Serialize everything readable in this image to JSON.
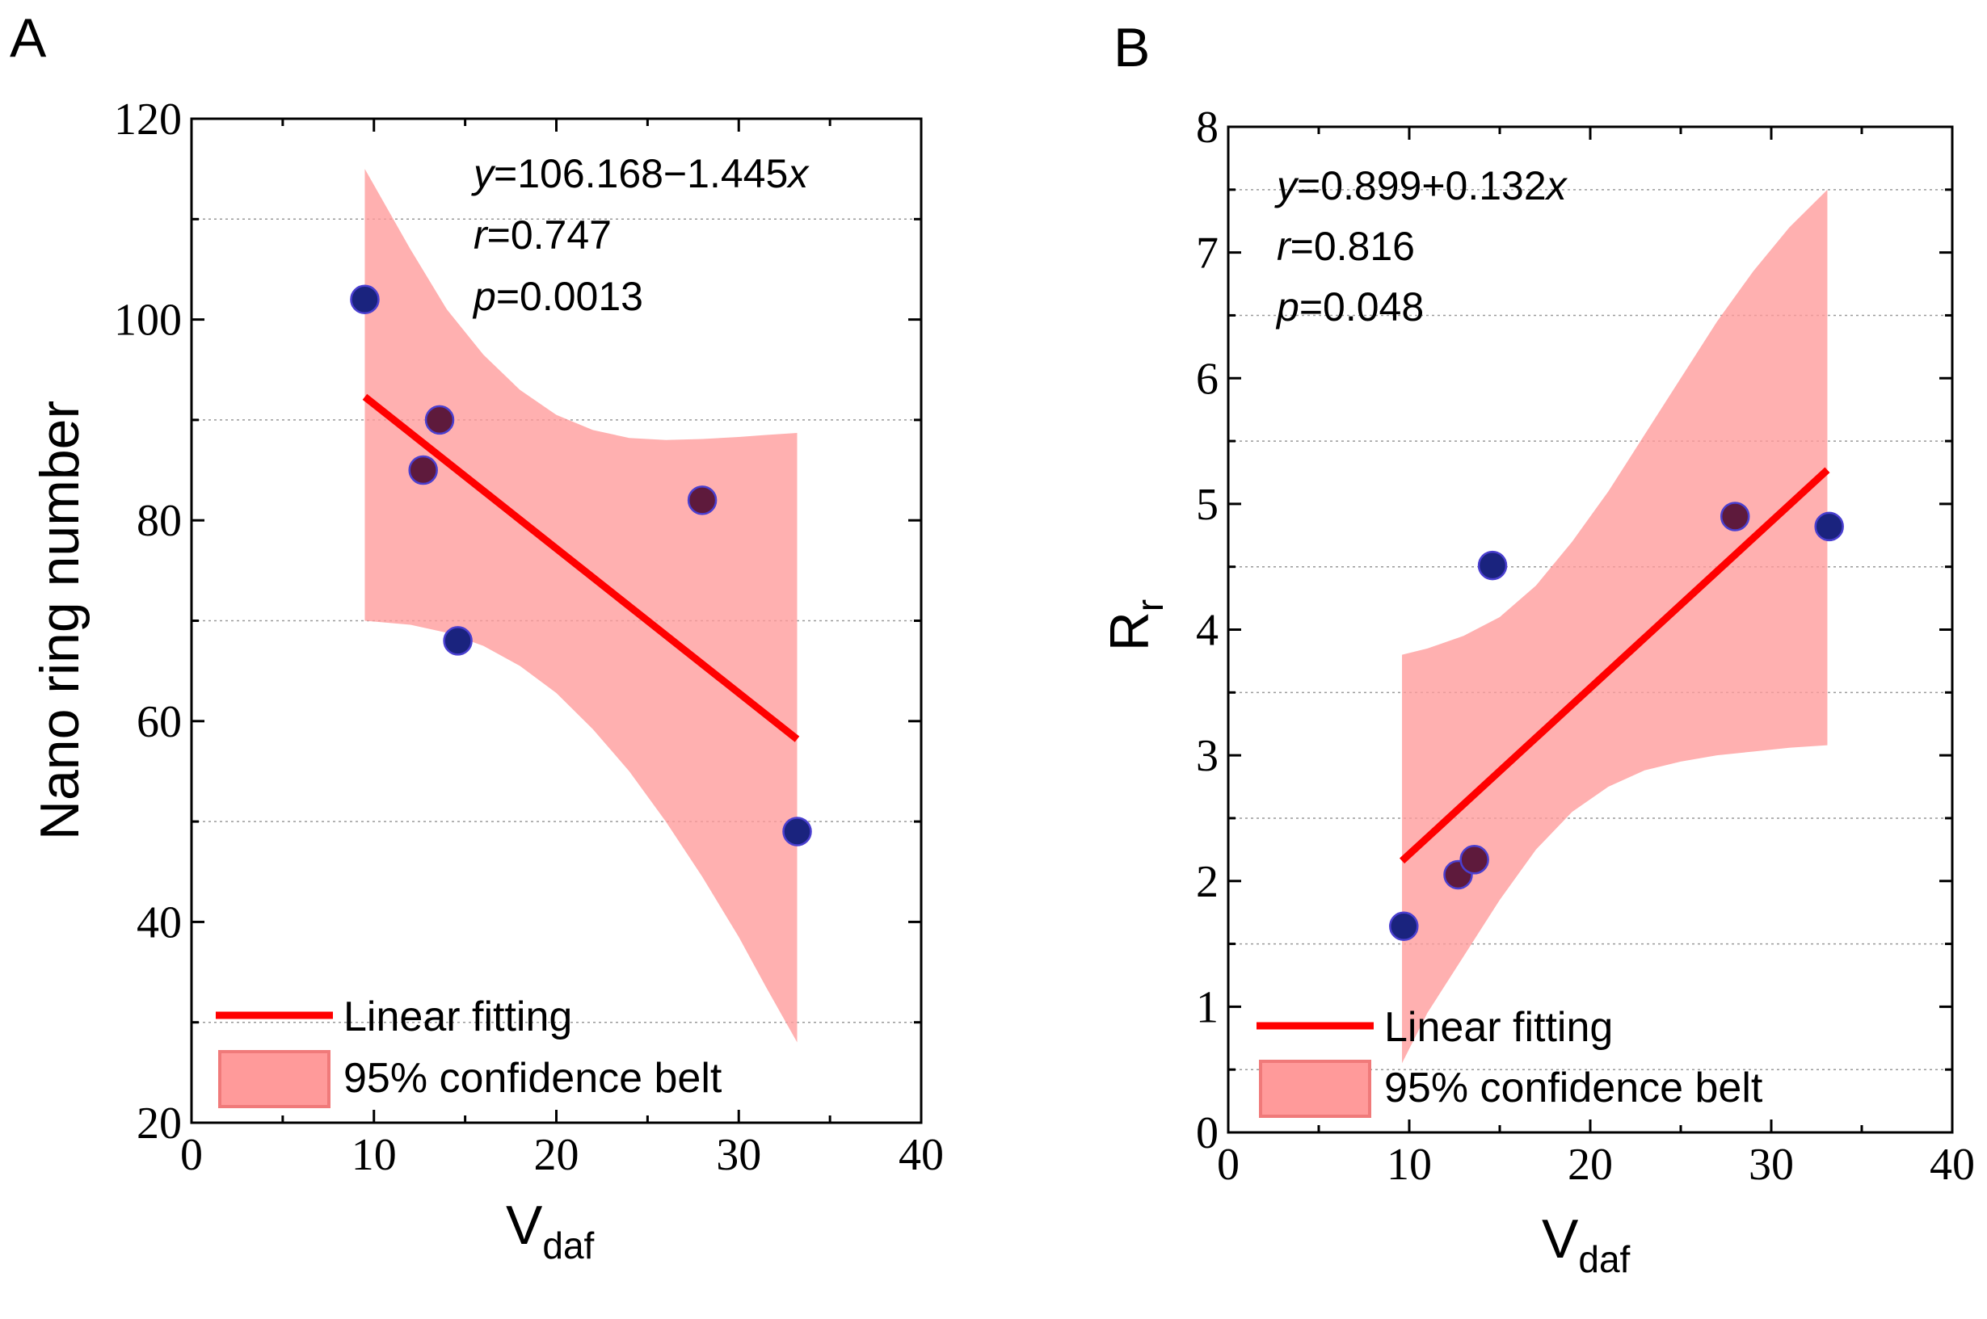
{
  "chart_data": [
    {
      "panel_label": "A",
      "type": "scatter",
      "xlabel_main": "V",
      "xlabel_sub": "daf",
      "ylabel_main": "Nano ring number",
      "ylabel_sub": "",
      "xlim": [
        0,
        40
      ],
      "ylim": [
        20,
        120
      ],
      "xticks": [
        0,
        10,
        20,
        30,
        40
      ],
      "yticks": [
        20,
        40,
        60,
        80,
        100,
        120
      ],
      "grid_values": [
        30,
        50,
        70,
        90,
        110
      ],
      "points": [
        {
          "x": 9.5,
          "y": 102,
          "color": "#1a237e"
        },
        {
          "x": 12.7,
          "y": 85,
          "color": "#5e1a3c"
        },
        {
          "x": 13.6,
          "y": 90,
          "color": "#5e1a3c"
        },
        {
          "x": 14.6,
          "y": 68,
          "color": "#1a237e"
        },
        {
          "x": 28.0,
          "y": 82,
          "color": "#5e1a3c"
        },
        {
          "x": 33.2,
          "y": 49,
          "color": "#1a237e"
        }
      ],
      "fit_line": {
        "x": [
          9.5,
          33.2
        ],
        "y": [
          92.3,
          58.2
        ]
      },
      "confidence_upper": [
        [
          9.5,
          115
        ],
        [
          12,
          107
        ],
        [
          14,
          101
        ],
        [
          16,
          96.5
        ],
        [
          18,
          93
        ],
        [
          20,
          90.5
        ],
        [
          22,
          89
        ],
        [
          24,
          88.2
        ],
        [
          26,
          88
        ],
        [
          28,
          88.1
        ],
        [
          30,
          88.3
        ],
        [
          31.5,
          88.5
        ],
        [
          33.2,
          88.7
        ]
      ],
      "confidence_lower": [
        [
          9.5,
          70
        ],
        [
          12,
          69.6
        ],
        [
          14,
          68.8
        ],
        [
          16,
          67.5
        ],
        [
          18,
          65.5
        ],
        [
          20,
          62.8
        ],
        [
          22,
          59.2
        ],
        [
          24,
          55
        ],
        [
          26,
          50
        ],
        [
          28,
          44.5
        ],
        [
          30,
          38.5
        ],
        [
          31.5,
          33.5
        ],
        [
          33.2,
          28
        ]
      ],
      "annotation": {
        "line1_var": "y",
        "line1_text": "=106.168−1.445",
        "line1_end": "x",
        "line2_var": "r",
        "line2_text": "=0.747",
        "line3_var": "p",
        "line3_text": "=0.0013"
      },
      "legend": {
        "placement": "bottom-left",
        "entries": [
          "Linear fitting",
          "95% confidence belt"
        ]
      }
    },
    {
      "panel_label": "B",
      "type": "scatter",
      "xlabel_main": "V",
      "xlabel_sub": "daf",
      "ylabel_main": "R",
      "ylabel_sub": "r",
      "xlim": [
        0,
        40
      ],
      "ylim": [
        0,
        8
      ],
      "xticks": [
        0,
        10,
        20,
        30,
        40
      ],
      "yticks": [
        0,
        1,
        2,
        3,
        4,
        5,
        6,
        7,
        8
      ],
      "grid_values": [
        0.5,
        1.5,
        2.5,
        3.5,
        4.5,
        5.5,
        6.5,
        7.5
      ],
      "points": [
        {
          "x": 9.7,
          "y": 1.64,
          "color": "#1a237e"
        },
        {
          "x": 12.7,
          "y": 2.05,
          "color": "#5e1a3c"
        },
        {
          "x": 13.6,
          "y": 2.17,
          "color": "#5e1a3c"
        },
        {
          "x": 14.6,
          "y": 4.51,
          "color": "#1a237e"
        },
        {
          "x": 28.0,
          "y": 4.9,
          "color": "#5e1a3c"
        },
        {
          "x": 33.2,
          "y": 4.82,
          "color": "#1a237e"
        }
      ],
      "fit_line": {
        "x": [
          9.6,
          33.1
        ],
        "y": [
          2.16,
          5.27
        ]
      },
      "confidence_upper": [
        [
          9.6,
          3.8
        ],
        [
          11,
          3.85
        ],
        [
          13,
          3.95
        ],
        [
          15,
          4.1
        ],
        [
          17,
          4.35
        ],
        [
          19,
          4.7
        ],
        [
          21,
          5.1
        ],
        [
          23,
          5.55
        ],
        [
          25,
          6.0
        ],
        [
          27,
          6.45
        ],
        [
          29,
          6.85
        ],
        [
          31,
          7.2
        ],
        [
          33.1,
          7.5
        ]
      ],
      "confidence_lower": [
        [
          9.6,
          0.55
        ],
        [
          11,
          0.95
        ],
        [
          13,
          1.4
        ],
        [
          15,
          1.85
        ],
        [
          17,
          2.25
        ],
        [
          19,
          2.55
        ],
        [
          21,
          2.75
        ],
        [
          23,
          2.88
        ],
        [
          25,
          2.95
        ],
        [
          27,
          3.0
        ],
        [
          29,
          3.03
        ],
        [
          31,
          3.06
        ],
        [
          33.1,
          3.08
        ]
      ],
      "annotation": {
        "line1_var": "y",
        "line1_text": "=0.899+0.132",
        "line1_end": "x",
        "line2_var": "r",
        "line2_text": "=0.816",
        "line3_var": "p",
        "line3_text": "=0.048"
      },
      "legend": {
        "placement": "bottom-left",
        "entries": [
          "Linear fitting",
          "95% confidence belt"
        ]
      }
    }
  ],
  "colors": {
    "fit_line": "#ff0000",
    "belt": "#ff9a9a",
    "belt_edge": "#f07a7a",
    "grid": "#9a9a9a",
    "axis": "#000000"
  }
}
